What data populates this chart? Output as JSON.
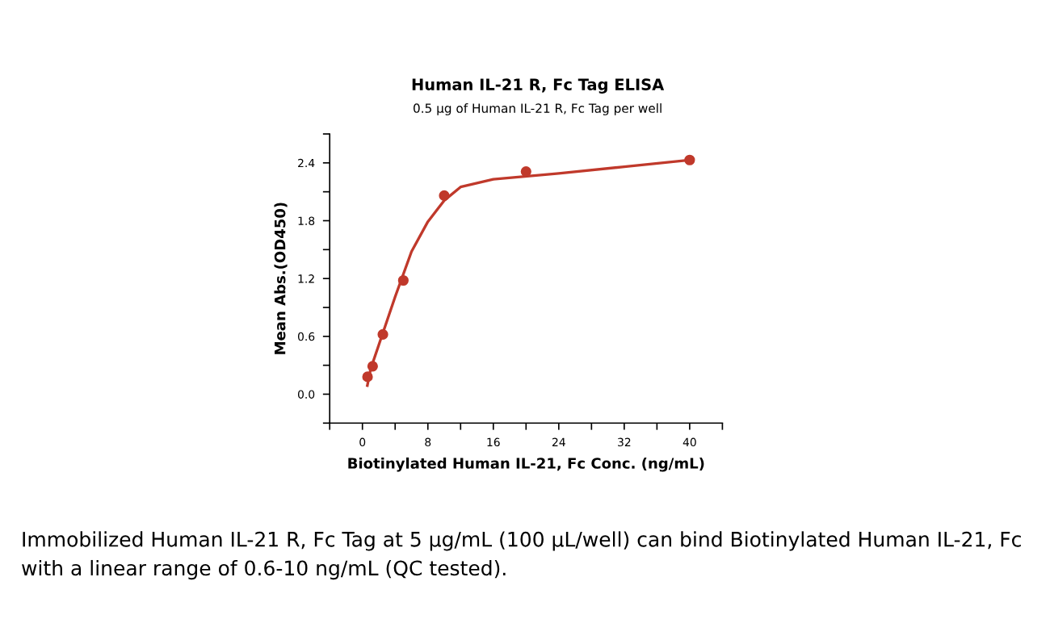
{
  "chart_data": {
    "type": "scatter",
    "title": "Human IL-21 R, Fc Tag ELISA",
    "subtitle": "0.5 μg of Human IL-21 R, Fc Tag per well",
    "xlabel": "Biotinylated Human IL-21, Fc Conc. (ng/mL)",
    "ylabel": "Mean Abs.(OD450)",
    "series": [
      {
        "color": "#c0392b",
        "marker": "circle",
        "x": [
          0.625,
          1.25,
          2.5,
          5,
          10,
          20,
          40
        ],
        "values": [
          0.18,
          0.29,
          0.62,
          1.18,
          2.06,
          2.31,
          2.43
        ]
      },
      {
        "type": "line",
        "color": "#c0392b",
        "marker": "none",
        "line_style": "solid",
        "x": [
          0.6,
          1,
          2,
          4,
          6,
          8,
          10,
          12,
          16,
          24,
          32,
          40
        ],
        "values": [
          0.09,
          0.26,
          0.51,
          1.01,
          1.48,
          1.79,
          2.01,
          2.15,
          2.23,
          2.29,
          2.36,
          2.43
        ]
      }
    ],
    "xlim": [
      -4,
      44
    ],
    "ylim": [
      -0.3,
      2.7
    ],
    "xticks": [
      {
        "value": -4,
        "label": null
      },
      0,
      {
        "value": 4,
        "label": null
      },
      8,
      {
        "value": 12,
        "label": null
      },
      16,
      {
        "value": 20,
        "label": null
      },
      24,
      {
        "value": 28,
        "label": null
      },
      32,
      {
        "value": 36,
        "label": null
      },
      40,
      {
        "value": 44,
        "label": null
      }
    ],
    "yticks": [
      {
        "value": -0.3,
        "label": null
      },
      {
        "value": 0,
        "label": "0.0"
      },
      {
        "value": 0.3,
        "label": null
      },
      0.6,
      {
        "value": 0.9,
        "label": null
      },
      1.2,
      {
        "value": 1.5,
        "label": null
      },
      1.8,
      {
        "value": 2.1,
        "label": null
      },
      2.4,
      {
        "value": 2.7,
        "label": null
      }
    ],
    "grid": false,
    "legend": false,
    "annotations": [
      "Immobilized Human IL-21 R, Fc Tag at 5 μg/mL (100 μL/well) can bind Biotinylated Human IL-21, Fc with a linear range of 0.6-10 ng/mL (QC tested)."
    ]
  }
}
